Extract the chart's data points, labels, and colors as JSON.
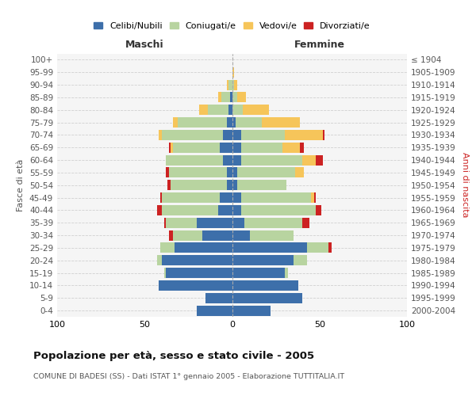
{
  "age_groups": [
    "0-4",
    "5-9",
    "10-14",
    "15-19",
    "20-24",
    "25-29",
    "30-34",
    "35-39",
    "40-44",
    "45-49",
    "50-54",
    "55-59",
    "60-64",
    "65-69",
    "70-74",
    "75-79",
    "80-84",
    "85-89",
    "90-94",
    "95-99",
    "100+"
  ],
  "birth_years": [
    "2000-2004",
    "1995-1999",
    "1990-1994",
    "1985-1989",
    "1980-1984",
    "1975-1979",
    "1970-1974",
    "1965-1969",
    "1960-1964",
    "1955-1959",
    "1950-1954",
    "1945-1949",
    "1940-1944",
    "1935-1939",
    "1930-1934",
    "1925-1929",
    "1920-1924",
    "1915-1919",
    "1910-1914",
    "1905-1909",
    "≤ 1904"
  ],
  "maschi": {
    "celibi": [
      20,
      15,
      42,
      38,
      40,
      33,
      17,
      20,
      8,
      7,
      3,
      3,
      5,
      7,
      5,
      3,
      2,
      1,
      0,
      0,
      0
    ],
    "coniugati": [
      0,
      0,
      0,
      1,
      3,
      8,
      17,
      18,
      32,
      33,
      32,
      33,
      33,
      27,
      35,
      28,
      12,
      5,
      2,
      0,
      0
    ],
    "vedovi": [
      0,
      0,
      0,
      0,
      0,
      0,
      0,
      0,
      0,
      0,
      0,
      0,
      0,
      1,
      2,
      3,
      5,
      2,
      1,
      0,
      0
    ],
    "divorziati": [
      0,
      0,
      0,
      0,
      0,
      0,
      2,
      1,
      3,
      1,
      2,
      2,
      0,
      1,
      0,
      0,
      0,
      0,
      0,
      0,
      0
    ]
  },
  "femmine": {
    "nubili": [
      22,
      40,
      38,
      30,
      35,
      43,
      10,
      7,
      5,
      5,
      3,
      3,
      5,
      5,
      5,
      2,
      0,
      0,
      0,
      0,
      0
    ],
    "coniugate": [
      0,
      0,
      0,
      2,
      8,
      12,
      25,
      33,
      43,
      40,
      28,
      33,
      35,
      24,
      25,
      15,
      6,
      3,
      1,
      0,
      0
    ],
    "vedove": [
      0,
      0,
      0,
      0,
      0,
      0,
      0,
      0,
      0,
      2,
      0,
      5,
      8,
      10,
      22,
      22,
      15,
      5,
      2,
      1,
      0
    ],
    "divorziate": [
      0,
      0,
      0,
      0,
      0,
      2,
      0,
      4,
      3,
      1,
      0,
      0,
      4,
      2,
      1,
      0,
      0,
      0,
      0,
      0,
      0
    ]
  },
  "colors": {
    "celibi_nubili": "#3d6faa",
    "coniugati": "#b8d4a0",
    "vedovi": "#f6c55a",
    "divorziati": "#cc2222"
  },
  "title": "Popolazione per età, sesso e stato civile - 2005",
  "subtitle": "COMUNE DI BADESI (SS) - Dati ISTAT 1° gennaio 2005 - Elaborazione TUTTITALIA.IT",
  "xlabel_left": "Maschi",
  "xlabel_right": "Femmine",
  "ylabel_left": "Fasce di età",
  "ylabel_right": "Anni di nascita",
  "xlim": 100,
  "legend_labels": [
    "Celibi/Nubili",
    "Coniugati/e",
    "Vedovi/e",
    "Divorziati/e"
  ],
  "background_color": "#ffffff",
  "plot_bg_color": "#f5f5f5",
  "grid_color": "#cccccc"
}
